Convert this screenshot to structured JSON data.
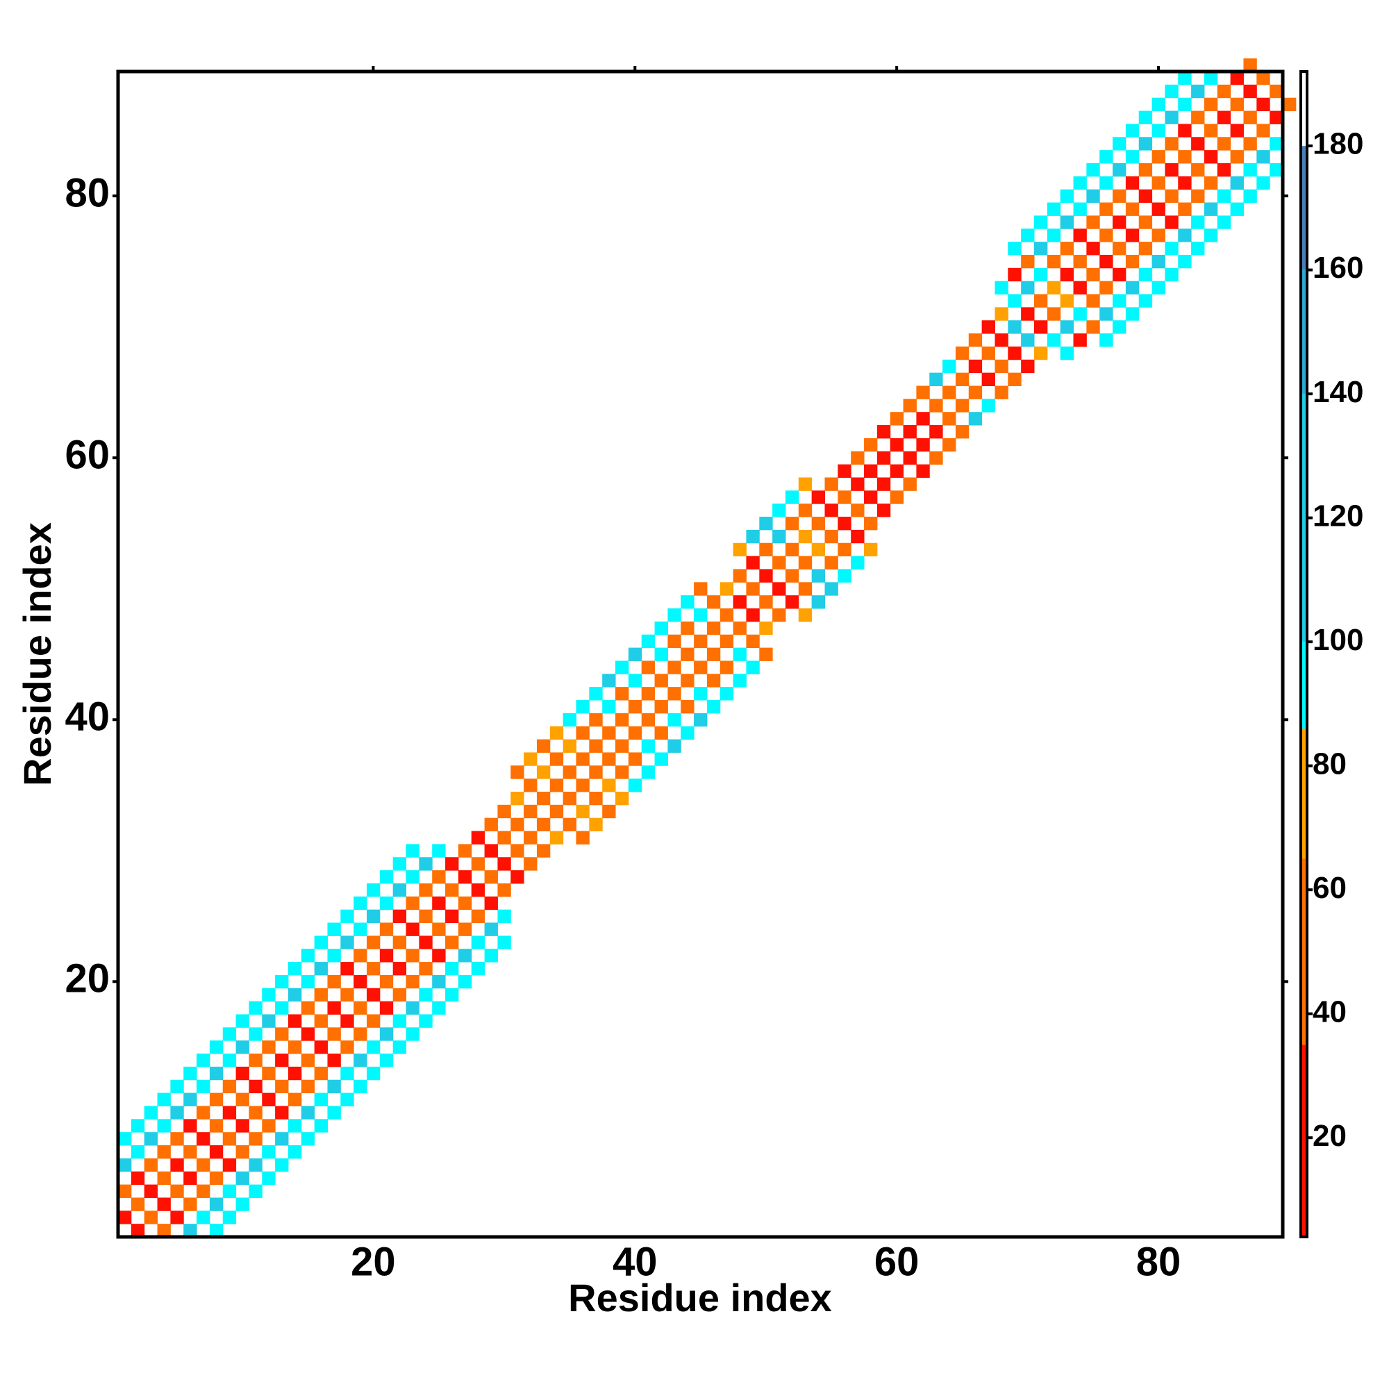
{
  "chart_data": {
    "type": "heatmap",
    "xlabel": "Residue index",
    "ylabel": "Residue index",
    "xlim": [
      0.5,
      89.5
    ],
    "ylim": [
      0.5,
      89.5
    ],
    "xticks": [
      20,
      40,
      60,
      80
    ],
    "yticks": [
      20,
      40,
      60,
      80
    ],
    "symmetric": true,
    "residues": [
      1,
      2,
      3,
      4,
      5,
      6,
      7,
      8,
      9,
      10,
      11,
      12,
      13,
      14,
      15,
      16,
      17,
      18,
      19,
      20,
      21,
      22,
      23,
      24,
      25,
      26,
      27,
      28,
      29,
      30,
      31,
      32,
      33,
      34,
      35,
      36,
      37,
      38,
      39,
      40,
      41,
      42,
      43,
      44,
      45,
      46,
      47,
      48,
      49,
      50,
      51,
      52,
      53,
      54,
      55,
      56,
      57,
      58,
      59,
      60,
      61,
      62,
      63,
      64,
      65,
      66,
      67,
      68,
      69,
      70,
      71,
      72,
      73,
      74,
      75,
      76,
      77,
      78,
      79,
      80,
      81,
      82,
      83,
      84,
      85,
      86,
      87,
      88,
      89
    ],
    "offsets": [
      1,
      3,
      5,
      7
    ],
    "values": [
      [
        25,
        50,
        115,
        92
      ],
      [
        50,
        25,
        92,
        92
      ],
      [
        25,
        55,
        115,
        92
      ],
      [
        50,
        48,
        92,
        92
      ],
      [
        22,
        52,
        115,
        92
      ],
      [
        50,
        25,
        115,
        92
      ],
      [
        28,
        50,
        92,
        92
      ],
      [
        52,
        45,
        115,
        92
      ],
      [
        25,
        50,
        92,
        92
      ],
      [
        50,
        28,
        115,
        92
      ],
      [
        24,
        55,
        92,
        92
      ],
      [
        48,
        50,
        115,
        92
      ],
      [
        26,
        45,
        92,
        92
      ],
      [
        50,
        25,
        115,
        92
      ],
      [
        25,
        52,
        92,
        92
      ],
      [
        52,
        50,
        115,
        92
      ],
      [
        22,
        48,
        92,
        92
      ],
      [
        50,
        25,
        115,
        92
      ],
      [
        28,
        55,
        92,
        92
      ],
      [
        48,
        50,
        115,
        92
      ],
      [
        25,
        45,
        92,
        92
      ],
      [
        50,
        28,
        115,
        92
      ],
      [
        24,
        52,
        92,
        92
      ],
      [
        52,
        50,
        115,
        null
      ],
      [
        26,
        48,
        92,
        null
      ],
      [
        50,
        25,
        null,
        null
      ],
      [
        22,
        55,
        null,
        null
      ],
      [
        50,
        30,
        null,
        null
      ],
      [
        28,
        50,
        null,
        null
      ],
      [
        48,
        52,
        null,
        null
      ],
      [
        52,
        75,
        55,
        null
      ],
      [
        50,
        52,
        78,
        null
      ],
      [
        55,
        78,
        52,
        null
      ],
      [
        50,
        52,
        75,
        null
      ],
      [
        52,
        75,
        92,
        null
      ],
      [
        50,
        55,
        92,
        null
      ],
      [
        55,
        52,
        92,
        null
      ],
      [
        50,
        92,
        115,
        null
      ],
      [
        52,
        55,
        92,
        null
      ],
      [
        50,
        92,
        115,
        null
      ],
      [
        55,
        52,
        92,
        null
      ],
      [
        50,
        92,
        92,
        null
      ],
      [
        52,
        55,
        92,
        null
      ],
      [
        50,
        52,
        92,
        null
      ],
      [
        55,
        92,
        52,
        null
      ],
      [
        50,
        52,
        null,
        null
      ],
      [
        52,
        75,
        null,
        null
      ],
      [
        25,
        50,
        75,
        null
      ],
      [
        50,
        25,
        115,
        null
      ],
      [
        25,
        52,
        115,
        null
      ],
      [
        50,
        115,
        92,
        null
      ],
      [
        52,
        50,
        92,
        null
      ],
      [
        75,
        52,
        75,
        null
      ],
      [
        50,
        25,
        null,
        null
      ],
      [
        25,
        50,
        null,
        null
      ],
      [
        50,
        25,
        null,
        null
      ],
      [
        25,
        52,
        null,
        null
      ],
      [
        22,
        50,
        null,
        null
      ],
      [
        25,
        22,
        null,
        null
      ],
      [
        22,
        50,
        null,
        null
      ],
      [
        25,
        48,
        null,
        null
      ],
      [
        22,
        50,
        null,
        null
      ],
      [
        50,
        115,
        null,
        null
      ],
      [
        52,
        92,
        null,
        null
      ],
      [
        50,
        52,
        null,
        null
      ],
      [
        25,
        50,
        null,
        null
      ],
      [
        50,
        25,
        null,
        null
      ],
      [
        25,
        75,
        92,
        null
      ],
      [
        115,
        92,
        25,
        92
      ],
      [
        25,
        115,
        50,
        92
      ],
      [
        50,
        92,
        115,
        92
      ],
      [
        75,
        50,
        92,
        92
      ],
      [
        25,
        52,
        115,
        92
      ],
      [
        50,
        25,
        92,
        92
      ],
      [
        25,
        50,
        115,
        92
      ],
      [
        52,
        48,
        92,
        92
      ],
      [
        22,
        55,
        115,
        92
      ],
      [
        50,
        25,
        92,
        92
      ],
      [
        28,
        50,
        115,
        92
      ],
      [
        50,
        45,
        92,
        92
      ],
      [
        25,
        50,
        115,
        92
      ],
      [
        52,
        25,
        92,
        92
      ],
      [
        25,
        50,
        115,
        null
      ],
      [
        50,
        48,
        92,
        null
      ],
      [
        25,
        52,
        null,
        null
      ],
      [
        50,
        25,
        null,
        null
      ],
      [
        25,
        50,
        null,
        null
      ],
      [
        50,
        null,
        null,
        null
      ],
      [
        null,
        null,
        null,
        null
      ]
    ],
    "colorbar": {
      "lim": [
        4,
        192
      ],
      "ticks": [
        20,
        40,
        60,
        80,
        100,
        120,
        140,
        160,
        180
      ],
      "bins": [
        {
          "min": 4,
          "max": 35,
          "color": "#ff1000"
        },
        {
          "min": 35,
          "max": 65,
          "color": "#ff7000"
        },
        {
          "min": 65,
          "max": 86,
          "color": "#ffa200"
        },
        {
          "min": 86,
          "max": 100,
          "color": "#00f8ff"
        },
        {
          "min": 100,
          "max": 140,
          "color": "#20cde6"
        },
        {
          "min": 140,
          "max": 160,
          "color": "#2ea8d6"
        },
        {
          "min": 160,
          "max": 180,
          "color": "#4a7fb8"
        },
        {
          "min": 180,
          "max": 192,
          "color": "#ffffff"
        }
      ]
    }
  }
}
